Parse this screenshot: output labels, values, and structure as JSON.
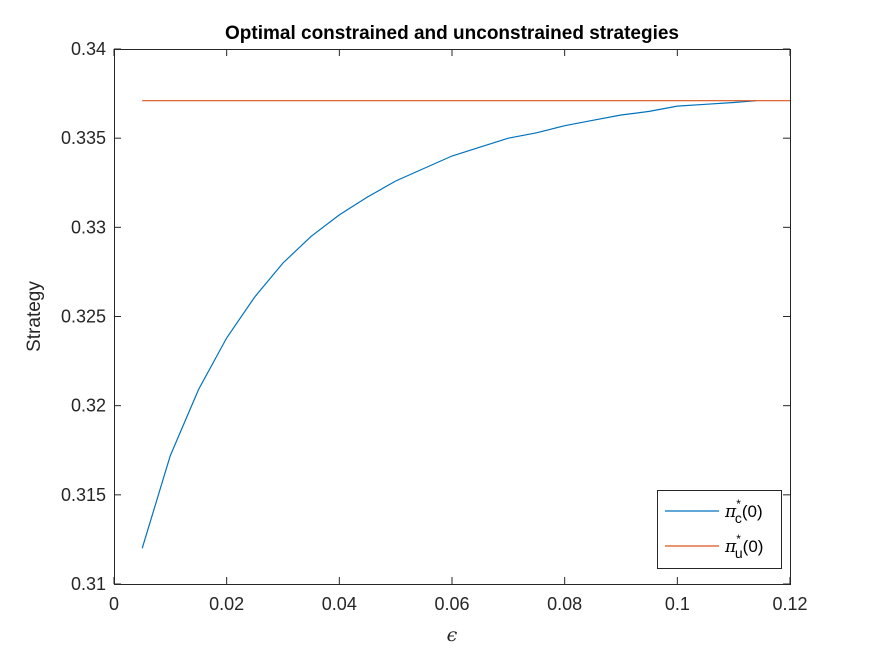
{
  "chart_data": {
    "type": "line",
    "title": "Optimal constrained and unconstrained strategies",
    "xlabel": "ϵ",
    "ylabel": "Strategy",
    "xlim": [
      0,
      0.12
    ],
    "ylim": [
      0.31,
      0.34
    ],
    "xticks": [
      "0",
      "0.02",
      "0.04",
      "0.06",
      "0.08",
      "0.1",
      "0.12"
    ],
    "yticks": [
      "0.31",
      "0.315",
      "0.32",
      "0.325",
      "0.33",
      "0.335",
      "0.34"
    ],
    "grid": false,
    "legend_position": "bottom-right",
    "series": [
      {
        "name": "π*c(0)",
        "legend": {
          "symbol": "π",
          "sup": "*",
          "sub": "c",
          "suffix": "(0)"
        },
        "color": "#0072BD",
        "x": [
          0.005,
          0.01,
          0.015,
          0.02,
          0.025,
          0.03,
          0.035,
          0.04,
          0.045,
          0.05,
          0.055,
          0.06,
          0.065,
          0.07,
          0.075,
          0.08,
          0.085,
          0.09,
          0.095,
          0.1,
          0.105,
          0.11,
          0.114
        ],
        "y": [
          0.312,
          0.3172,
          0.3209,
          0.3238,
          0.3261,
          0.328,
          0.3295,
          0.3307,
          0.3317,
          0.3326,
          0.3333,
          0.334,
          0.3345,
          0.335,
          0.3353,
          0.3357,
          0.336,
          0.3363,
          0.3365,
          0.3368,
          0.3369,
          0.337,
          0.3371
        ]
      },
      {
        "name": "π*u(0)",
        "legend": {
          "symbol": "π",
          "sup": "*",
          "sub": "u",
          "suffix": "(0)"
        },
        "color": "#D95319",
        "x": [
          0.005,
          0.12
        ],
        "y": [
          0.3371,
          0.3371
        ]
      }
    ]
  }
}
